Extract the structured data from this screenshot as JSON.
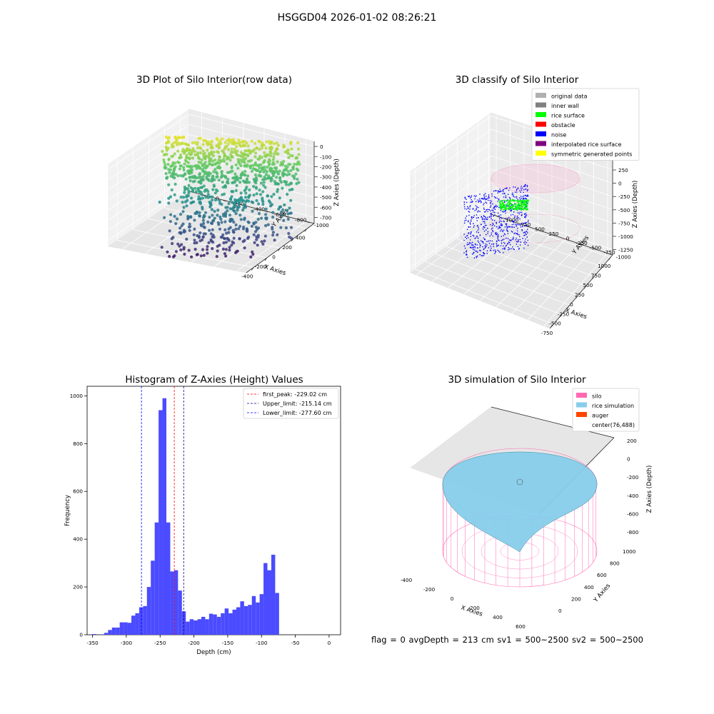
{
  "figure": {
    "title": "HSGGD04 2026-01-02 08:26:21"
  },
  "footer": {
    "text": "flag = 0     avgDepth = 213 cm  sv1 = 500~2500  sv2 = 500~2500"
  },
  "chart_data": [
    {
      "type": "scatter",
      "title": "3D Plot of Silo Interior(row data)",
      "xlabel": "X Axies",
      "ylabel": "Y Axies",
      "zlabel": "Z Axies (Depth)",
      "x_ticks": [
        -400,
        -200,
        0,
        200,
        400
      ],
      "y_ticks": [
        -1000,
        -800,
        -600,
        -400,
        -200,
        0
      ],
      "z_ticks": [
        -700,
        -600,
        -500,
        -400,
        -300,
        -200,
        -100,
        0
      ],
      "colormap": "viridis"
    },
    {
      "type": "scatter",
      "title": "3D classify of Silo Interior",
      "xlabel": "X Axies",
      "ylabel": "Y Axies",
      "zlabel": "Z Axies (Depth)",
      "x_ticks": [
        -750,
        -500,
        -250,
        0,
        250,
        500,
        750,
        1000
      ],
      "y_ticks": [
        -1000,
        -750,
        -500,
        -250,
        0,
        250,
        500,
        750,
        1000
      ],
      "z_ticks": [
        -1250,
        -1000,
        -750,
        -500,
        -250,
        0,
        250,
        500
      ],
      "legend_position": "top-right",
      "legend": [
        {
          "label": "original data",
          "color": "#b0b0b0"
        },
        {
          "label": "inner wall",
          "color": "#808080"
        },
        {
          "label": "rice surface",
          "color": "#00ff00"
        },
        {
          "label": "obstacle",
          "color": "#ff0000"
        },
        {
          "label": "noise",
          "color": "#0000ff"
        },
        {
          "label": "interpolated rice surface",
          "color": "#800080"
        },
        {
          "label": "symmetric generated points",
          "color": "#ffff00"
        }
      ]
    },
    {
      "type": "bar",
      "title": "Histogram of Z-Axies (Height) Values",
      "xlabel": "Depth (cm)",
      "ylabel": "Frequency",
      "xlim": [
        -358,
        17
      ],
      "ylim": [
        0,
        1040
      ],
      "x_ticks": [
        -350,
        -300,
        -250,
        -200,
        -150,
        -100,
        -50,
        0
      ],
      "y_ticks": [
        0,
        200,
        400,
        600,
        800,
        1000
      ],
      "bar_color": "#4b4bff",
      "bin_start": -350,
      "bin_width": 5.75,
      "values": [
        3,
        0,
        2,
        8,
        20,
        30,
        30,
        52,
        52,
        50,
        80,
        90,
        115,
        120,
        200,
        310,
        470,
        940,
        990,
        470,
        265,
        270,
        185,
        98,
        55,
        65,
        60,
        65,
        75,
        65,
        88,
        85,
        75,
        90,
        110,
        90,
        105,
        115,
        140,
        120,
        125,
        162,
        135,
        170,
        300,
        270,
        335,
        175
      ],
      "annotations": [
        {
          "label": "first_peak: -229.02 cm",
          "x": -229.02,
          "color": "#ff0000"
        },
        {
          "label": "Upper_limit: -215.14 cm",
          "x": -215.14,
          "color": "#00008b"
        },
        {
          "label": "Lower_limit: -277.60 cm",
          "x": -277.6,
          "color": "#0000ff"
        }
      ],
      "legend_position": "top-right"
    },
    {
      "type": "surface",
      "title": "3D simulation of Silo Interior",
      "xlabel": "X Axies",
      "ylabel": "Y Axies",
      "zlabel": "Z Axies (Depth)",
      "x_ticks": [
        -400,
        -200,
        0,
        200,
        400,
        600
      ],
      "y_ticks": [
        0,
        200,
        400,
        600,
        800,
        1000
      ],
      "z_ticks": [
        -800,
        -600,
        -400,
        -200,
        0,
        200
      ],
      "legend_position": "top-right",
      "legend": [
        {
          "label": "silo",
          "color": "#ff69b4"
        },
        {
          "label": "rice simulation",
          "color": "#87ceeb"
        },
        {
          "label": "auger",
          "color": "#ff4500"
        },
        {
          "label": "center(76,488)",
          "color": ""
        }
      ]
    }
  ]
}
